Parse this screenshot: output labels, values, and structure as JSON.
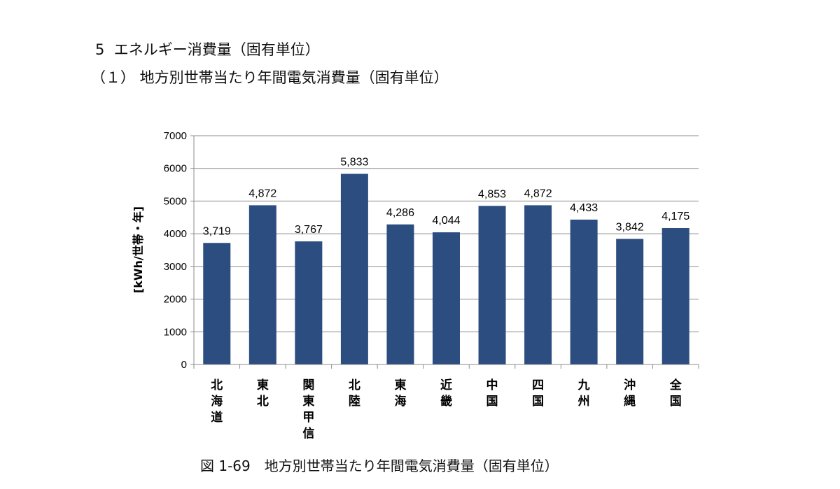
{
  "document": {
    "section_heading": "5  エネルギー消費量（固有単位）",
    "subsection_heading": "（１） 地方別世帯当たり年間電気消費量（固有単位）",
    "figure_caption": "図 1-69　地方別世帯当たり年間電気消費量（固有単位）"
  },
  "chart_data": {
    "type": "bar",
    "categories": [
      "北海道",
      "東北",
      "関東甲信",
      "北陸",
      "東海",
      "近畿",
      "中国",
      "四国",
      "九州",
      "沖縄",
      "全国"
    ],
    "values": [
      3719,
      4872,
      3767,
      5833,
      4286,
      4044,
      4853,
      4872,
      4433,
      3842,
      4175
    ],
    "data_labels": [
      "3,719",
      "4,872",
      "3,767",
      "5,833",
      "4,286",
      "4,044",
      "4,853",
      "4,872",
      "4,433",
      "3,842",
      "4,175"
    ],
    "ylabel": "[kWh/世帯・年]",
    "xlabel": "",
    "ylim": [
      0,
      7000
    ],
    "yticks": [
      0,
      1000,
      2000,
      3000,
      4000,
      5000,
      6000,
      7000
    ],
    "grid": true,
    "bar_color": "#2c4d7f"
  }
}
